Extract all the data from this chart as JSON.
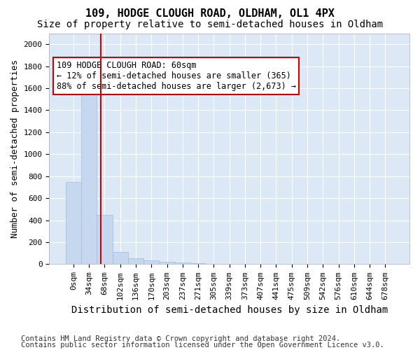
{
  "title1": "109, HODGE CLOUGH ROAD, OLDHAM, OL1 4PX",
  "title2": "Size of property relative to semi-detached houses in Oldham",
  "xlabel": "Distribution of semi-detached houses by size in Oldham",
  "ylabel": "Number of semi-detached properties",
  "footnote1": "Contains HM Land Registry data © Crown copyright and database right 2024.",
  "footnote2": "Contains public sector information licensed under the Open Government Licence v3.0.",
  "bin_labels": [
    "0sqm",
    "34sqm",
    "68sqm",
    "102sqm",
    "136sqm",
    "170sqm",
    "203sqm",
    "237sqm",
    "271sqm",
    "305sqm",
    "339sqm",
    "373sqm",
    "407sqm",
    "441sqm",
    "475sqm",
    "509sqm",
    "542sqm",
    "576sqm",
    "610sqm",
    "644sqm",
    "678sqm"
  ],
  "bar_values": [
    750,
    1630,
    450,
    110,
    55,
    35,
    20,
    15,
    10,
    5,
    0,
    0,
    0,
    0,
    0,
    0,
    0,
    0,
    0,
    0,
    0
  ],
  "bar_color": "#c5d8f0",
  "bar_edge_color": "#a0bcd8",
  "property_sqm": 60,
  "red_line_x": 1.76,
  "annotation_title": "109 HODGE CLOUGH ROAD: 60sqm",
  "annotation_line1": "← 12% of semi-detached houses are smaller (365)",
  "annotation_line2": "88% of semi-detached houses are larger (2,673) →",
  "annotation_box_color": "#ffffff",
  "annotation_box_edge": "#cc0000",
  "ylim": [
    0,
    2100
  ],
  "yticks": [
    0,
    200,
    400,
    600,
    800,
    1000,
    1200,
    1400,
    1600,
    1800,
    2000
  ],
  "background_color": "#dce8f5",
  "grid_color": "#ffffff",
  "title1_fontsize": 11,
  "title2_fontsize": 10,
  "xlabel_fontsize": 10,
  "ylabel_fontsize": 9,
  "tick_fontsize": 8,
  "annotation_fontsize": 8.5,
  "footnote_fontsize": 7.5
}
